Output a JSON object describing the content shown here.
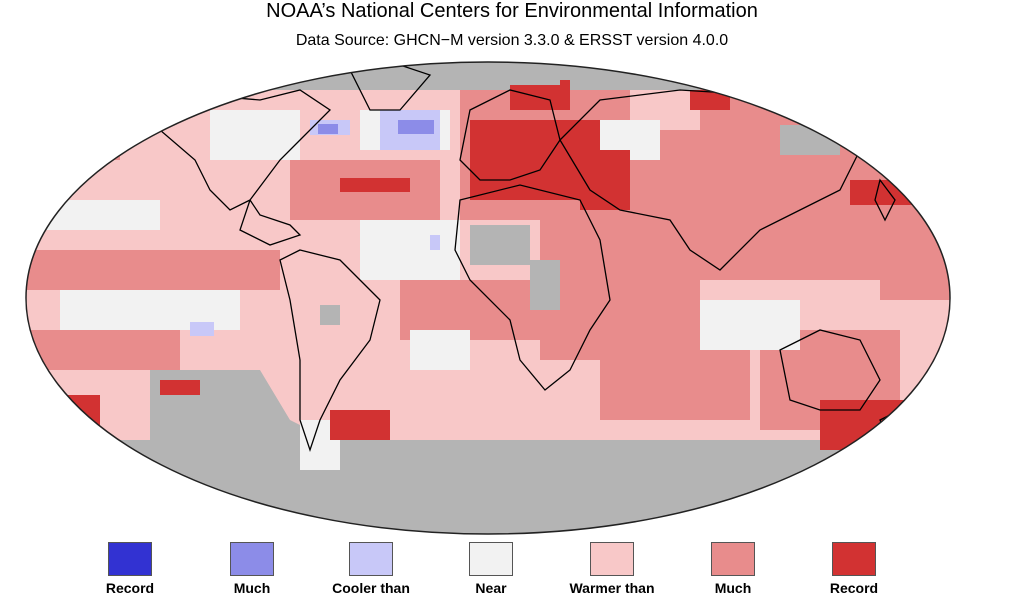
{
  "header": {
    "title": "NOAA’s National Centers for Environmental Information",
    "subtitle": "Data Source: GHCN−M version 3.3.0 & ERSST version 4.0.0"
  },
  "colors": {
    "no_data": "#b4b4b4",
    "record_cold": "#3232d2",
    "much_cooler": "#8c8ce8",
    "cooler": "#c8c8f8",
    "near_average": "#f2f2f2",
    "warmer": "#f8c8c8",
    "much_warmer": "#e88c8c",
    "record_warm": "#d23232",
    "land_outline": "#000000"
  },
  "legend": [
    {
      "label": "Record",
      "color": "#3232d2"
    },
    {
      "label": "Much",
      "color": "#8c8ce8"
    },
    {
      "label": "Cooler than",
      "color": "#c8c8f8"
    },
    {
      "label": "Near",
      "color": "#f2f2f2"
    },
    {
      "label": "Warmer than",
      "color": "#f8c8c8"
    },
    {
      "label": "Much",
      "color": "#e88c8c"
    },
    {
      "label": "Record",
      "color": "#d23232"
    }
  ]
}
